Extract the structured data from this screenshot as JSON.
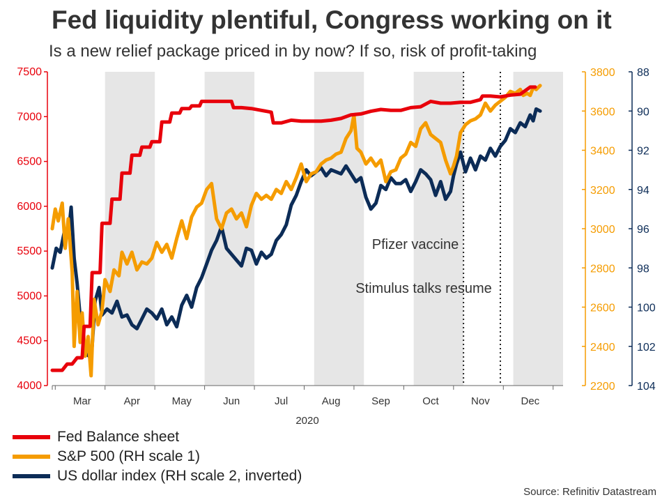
{
  "title": "Fed liquidity plentiful, Congress working on it",
  "subtitle": "Is a new relief package priced in by now? If so, risk of profit-taking",
  "source": "Source: Refinitiv Datastream",
  "chart_data": {
    "type": "line",
    "x_unit": "week",
    "x_label_year": "2020",
    "x_ticks": [
      {
        "label": "Mar",
        "week": 3
      },
      {
        "label": "Apr",
        "week": 8
      },
      {
        "label": "May",
        "week": 13
      },
      {
        "label": "Jun",
        "week": 18
      },
      {
        "label": "Jul",
        "week": 23
      },
      {
        "label": "Aug",
        "week": 28
      },
      {
        "label": "Sep",
        "week": 33
      },
      {
        "label": "Oct",
        "week": 38
      },
      {
        "label": "Nov",
        "week": 43
      },
      {
        "label": "Dec",
        "week": 48
      }
    ],
    "shaded_months": [
      {
        "start": 5.3,
        "end": 10.3
      },
      {
        "start": 15.3,
        "end": 20.3
      },
      {
        "start": 26.3,
        "end": 31.3
      },
      {
        "start": 36.3,
        "end": 41.3
      },
      {
        "start": 46.3,
        "end": 51.3
      }
    ],
    "xlim": [
      0,
      51.3
    ],
    "axes": {
      "left": {
        "min": 4000,
        "max": 7500,
        "ticks": [
          4000,
          4500,
          5000,
          5500,
          6000,
          6500,
          7000,
          7500
        ],
        "color": "#e8000b"
      },
      "right1": {
        "min": 2200,
        "max": 3800,
        "ticks": [
          2200,
          2400,
          2600,
          2800,
          3000,
          3200,
          3400,
          3600,
          3800
        ],
        "color": "#f59c00"
      },
      "right2": {
        "min": 88,
        "max": 104,
        "inverted": true,
        "ticks": [
          88,
          90,
          92,
          94,
          96,
          98,
          100,
          102,
          104
        ],
        "color": "#0c2c57"
      }
    },
    "annotations": [
      {
        "text": "Pfizer vaccine",
        "week": 41.3
      },
      {
        "text": "Stimulus talks resume",
        "week": 45
      }
    ],
    "series": [
      {
        "name": "Fed Balance sheet",
        "axis": "left",
        "color": "#e8000b",
        "points": [
          [
            0,
            4170
          ],
          [
            1,
            4170
          ],
          [
            1.5,
            4240
          ],
          [
            2,
            4240
          ],
          [
            2.5,
            4310
          ],
          [
            3,
            4310
          ],
          [
            3.2,
            4660
          ],
          [
            3.8,
            4660
          ],
          [
            4,
            5260
          ],
          [
            4.8,
            5260
          ],
          [
            5,
            5810
          ],
          [
            5.8,
            5810
          ],
          [
            6,
            6080
          ],
          [
            6.8,
            6080
          ],
          [
            7,
            6370
          ],
          [
            7.8,
            6370
          ],
          [
            8,
            6570
          ],
          [
            8.8,
            6570
          ],
          [
            9,
            6660
          ],
          [
            9.8,
            6660
          ],
          [
            10,
            6720
          ],
          [
            10.8,
            6720
          ],
          [
            11,
            6940
          ],
          [
            11.8,
            6940
          ],
          [
            12,
            7040
          ],
          [
            12.8,
            7040
          ],
          [
            13,
            7090
          ],
          [
            13.8,
            7090
          ],
          [
            14,
            7120
          ],
          [
            14.8,
            7120
          ],
          [
            15,
            7170
          ],
          [
            16,
            7170
          ],
          [
            17,
            7170
          ],
          [
            18,
            7170
          ],
          [
            18.2,
            7100
          ],
          [
            19,
            7100
          ],
          [
            20,
            7090
          ],
          [
            21,
            7070
          ],
          [
            22,
            7050
          ],
          [
            22.2,
            6930
          ],
          [
            23,
            6930
          ],
          [
            24,
            6960
          ],
          [
            25,
            6950
          ],
          [
            26,
            6950
          ],
          [
            27,
            6950
          ],
          [
            28,
            6960
          ],
          [
            29,
            6980
          ],
          [
            30,
            7020
          ],
          [
            31,
            7030
          ],
          [
            32,
            7060
          ],
          [
            33,
            7080
          ],
          [
            34,
            7070
          ],
          [
            35,
            7070
          ],
          [
            36,
            7100
          ],
          [
            37,
            7110
          ],
          [
            38,
            7170
          ],
          [
            39,
            7150
          ],
          [
            40,
            7150
          ],
          [
            41,
            7160
          ],
          [
            42,
            7160
          ],
          [
            43,
            7190
          ],
          [
            43.2,
            7230
          ],
          [
            44,
            7230
          ],
          [
            45,
            7220
          ],
          [
            46,
            7240
          ],
          [
            47,
            7250
          ],
          [
            48,
            7330
          ],
          [
            48.5,
            7330
          ]
        ]
      },
      {
        "name": "S&P 500 (RH scale 1)",
        "axis": "right1",
        "color": "#f59c00",
        "points": [
          [
            0,
            3000
          ],
          [
            0.3,
            3100
          ],
          [
            0.6,
            3040
          ],
          [
            1,
            3130
          ],
          [
            1.3,
            2900
          ],
          [
            1.6,
            3050
          ],
          [
            2,
            2780
          ],
          [
            2.2,
            2400
          ],
          [
            2.5,
            2680
          ],
          [
            2.8,
            2420
          ],
          [
            3,
            2570
          ],
          [
            3.3,
            2350
          ],
          [
            3.6,
            2450
          ],
          [
            3.9,
            2250
          ],
          [
            4.2,
            2640
          ],
          [
            4.6,
            2510
          ],
          [
            5,
            2580
          ],
          [
            5.3,
            2740
          ],
          [
            5.8,
            2680
          ],
          [
            6.2,
            2790
          ],
          [
            6.7,
            2760
          ],
          [
            7,
            2880
          ],
          [
            7.5,
            2820
          ],
          [
            8,
            2880
          ],
          [
            8.5,
            2790
          ],
          [
            9,
            2830
          ],
          [
            9.5,
            2820
          ],
          [
            10,
            2850
          ],
          [
            10.5,
            2930
          ],
          [
            11,
            2880
          ],
          [
            11.5,
            2920
          ],
          [
            12,
            2850
          ],
          [
            12.5,
            2950
          ],
          [
            13,
            3040
          ],
          [
            13.5,
            2950
          ],
          [
            14,
            3060
          ],
          [
            14.5,
            3110
          ],
          [
            15,
            3130
          ],
          [
            15.5,
            3200
          ],
          [
            16,
            3230
          ],
          [
            16.5,
            3050
          ],
          [
            17,
            3000
          ],
          [
            17.5,
            3080
          ],
          [
            18,
            3100
          ],
          [
            18.5,
            3050
          ],
          [
            19,
            3080
          ],
          [
            19.5,
            3010
          ],
          [
            20,
            3120
          ],
          [
            20.5,
            3180
          ],
          [
            21,
            3150
          ],
          [
            21.5,
            3170
          ],
          [
            22,
            3150
          ],
          [
            22.5,
            3200
          ],
          [
            23,
            3180
          ],
          [
            23.5,
            3240
          ],
          [
            24,
            3200
          ],
          [
            24.5,
            3260
          ],
          [
            25,
            3330
          ],
          [
            25.5,
            3240
          ],
          [
            26,
            3280
          ],
          [
            26.5,
            3290
          ],
          [
            27,
            3330
          ],
          [
            27.5,
            3350
          ],
          [
            28,
            3360
          ],
          [
            28.5,
            3380
          ],
          [
            29,
            3390
          ],
          [
            29.5,
            3460
          ],
          [
            30,
            3500
          ],
          [
            30.3,
            3580
          ],
          [
            30.6,
            3410
          ],
          [
            31,
            3390
          ],
          [
            31.5,
            3330
          ],
          [
            32,
            3360
          ],
          [
            32.5,
            3320
          ],
          [
            33,
            3350
          ],
          [
            33.5,
            3240
          ],
          [
            34,
            3290
          ],
          [
            34.5,
            3300
          ],
          [
            35,
            3360
          ],
          [
            35.5,
            3380
          ],
          [
            36,
            3440
          ],
          [
            36.5,
            3420
          ],
          [
            37,
            3510
          ],
          [
            37.5,
            3540
          ],
          [
            38,
            3480
          ],
          [
            38.5,
            3460
          ],
          [
            39,
            3440
          ],
          [
            39.5,
            3350
          ],
          [
            40,
            3280
          ],
          [
            40.3,
            3320
          ],
          [
            40.6,
            3370
          ],
          [
            41,
            3490
          ],
          [
            41.5,
            3530
          ],
          [
            42,
            3550
          ],
          [
            42.5,
            3560
          ],
          [
            43,
            3580
          ],
          [
            43.5,
            3640
          ],
          [
            44,
            3600
          ],
          [
            44.5,
            3630
          ],
          [
            45,
            3650
          ],
          [
            45.5,
            3670
          ],
          [
            46,
            3700
          ],
          [
            46.5,
            3690
          ],
          [
            47,
            3710
          ],
          [
            47.3,
            3680
          ],
          [
            47.7,
            3690
          ],
          [
            48,
            3680
          ],
          [
            48.3,
            3720
          ],
          [
            48.6,
            3710
          ],
          [
            49,
            3730
          ]
        ]
      },
      {
        "name": "US dollar index (RH scale 2, inverted)",
        "axis": "right2",
        "color": "#0c2c57",
        "points": [
          [
            0,
            98.0
          ],
          [
            0.4,
            97.0
          ],
          [
            0.8,
            97.2
          ],
          [
            1.2,
            96.2
          ],
          [
            1.6,
            96.4
          ],
          [
            1.9,
            94.9
          ],
          [
            2.2,
            97.5
          ],
          [
            2.5,
            98.8
          ],
          [
            2.8,
            100.5
          ],
          [
            3.1,
            101.7
          ],
          [
            3.4,
            102.4
          ],
          [
            3.7,
            102.5
          ],
          [
            4.0,
            102.0
          ],
          [
            4.3,
            99.7
          ],
          [
            4.7,
            99.0
          ],
          [
            5,
            100.4
          ],
          [
            5.5,
            100.1
          ],
          [
            6,
            100.3
          ],
          [
            6.5,
            99.7
          ],
          [
            7,
            100.5
          ],
          [
            7.5,
            100.4
          ],
          [
            8,
            100.9
          ],
          [
            8.5,
            101.1
          ],
          [
            9,
            100.6
          ],
          [
            9.5,
            100.1
          ],
          [
            10,
            100.3
          ],
          [
            10.5,
            100.6
          ],
          [
            11,
            100.1
          ],
          [
            11.5,
            100.9
          ],
          [
            12,
            100.5
          ],
          [
            12.5,
            101.0
          ],
          [
            13,
            99.9
          ],
          [
            13.5,
            99.4
          ],
          [
            14,
            100.0
          ],
          [
            14.5,
            99.0
          ],
          [
            15,
            98.5
          ],
          [
            15.5,
            97.8
          ],
          [
            16,
            97.1
          ],
          [
            16.5,
            96.6
          ],
          [
            17,
            95.9
          ],
          [
            17.5,
            97.0
          ],
          [
            18,
            97.3
          ],
          [
            18.5,
            97.6
          ],
          [
            19,
            97.9
          ],
          [
            19.5,
            97.0
          ],
          [
            20,
            97.1
          ],
          [
            20.5,
            97.8
          ],
          [
            21,
            97.2
          ],
          [
            21.5,
            97.5
          ],
          [
            22,
            97.3
          ],
          [
            22.5,
            96.6
          ],
          [
            23,
            96.3
          ],
          [
            23.5,
            95.8
          ],
          [
            24,
            94.8
          ],
          [
            24.5,
            94.3
          ],
          [
            25,
            93.6
          ],
          [
            25.5,
            93.0
          ],
          [
            26,
            93.3
          ],
          [
            26.5,
            93.1
          ],
          [
            27,
            92.9
          ],
          [
            27.5,
            93.3
          ],
          [
            28,
            93.0
          ],
          [
            28.5,
            93.1
          ],
          [
            29,
            93.2
          ],
          [
            29.5,
            92.8
          ],
          [
            30,
            93.2
          ],
          [
            30.5,
            93.6
          ],
          [
            31,
            93.4
          ],
          [
            31.5,
            94.4
          ],
          [
            32,
            95.0
          ],
          [
            32.5,
            94.7
          ],
          [
            33,
            93.8
          ],
          [
            33.5,
            94.0
          ],
          [
            34,
            93.4
          ],
          [
            34.5,
            93.7
          ],
          [
            35,
            93.7
          ],
          [
            35.5,
            93.5
          ],
          [
            36,
            94.1
          ],
          [
            36.5,
            93.6
          ],
          [
            37,
            93.0
          ],
          [
            37.5,
            93.2
          ],
          [
            38,
            93.5
          ],
          [
            38.5,
            94.3
          ],
          [
            39,
            93.6
          ],
          [
            39.5,
            94.5
          ],
          [
            40,
            94.1
          ],
          [
            40.3,
            93.3
          ],
          [
            40.6,
            92.7
          ],
          [
            41,
            92.1
          ],
          [
            41.5,
            93.1
          ],
          [
            42,
            92.4
          ],
          [
            42.5,
            93.0
          ],
          [
            43,
            92.3
          ],
          [
            43.5,
            92.5
          ],
          [
            44,
            91.9
          ],
          [
            44.5,
            92.3
          ],
          [
            45,
            91.8
          ],
          [
            45.5,
            91.5
          ],
          [
            46,
            90.9
          ],
          [
            46.5,
            91.1
          ],
          [
            47,
            90.6
          ],
          [
            47.5,
            90.8
          ],
          [
            48,
            90.2
          ],
          [
            48.3,
            90.5
          ],
          [
            48.6,
            89.9
          ],
          [
            49,
            90.0
          ]
        ]
      }
    ],
    "legend_position": "bottom-left",
    "grid": false
  }
}
